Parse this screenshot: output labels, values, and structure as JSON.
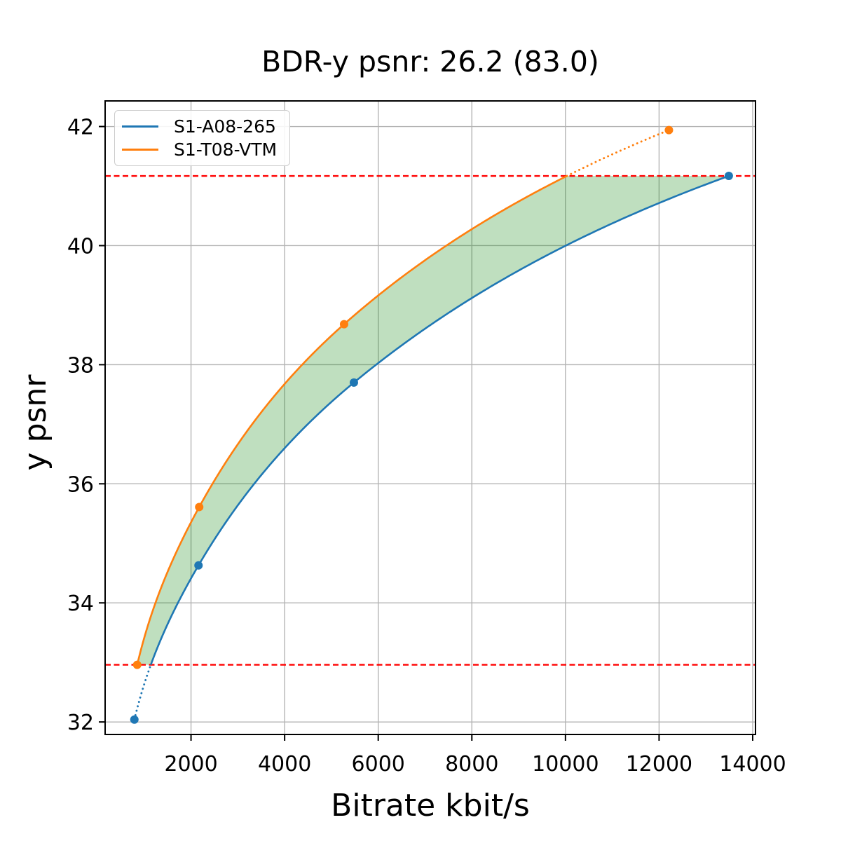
{
  "chart_data": {
    "type": "line",
    "title": "BDR-y psnr: 26.2 (83.0)",
    "xlabel": "Bitrate kbit/s",
    "ylabel": "y psnr",
    "xlim": [
      165,
      14060
    ],
    "ylim": [
      31.79,
      42.43
    ],
    "x_ticks": [
      2000,
      4000,
      6000,
      8000,
      10000,
      12000,
      14000
    ],
    "y_ticks": [
      32,
      34,
      36,
      38,
      40,
      42
    ],
    "grid": true,
    "grid_color": "#b4b4b4",
    "legend_position": "upper left",
    "interpolation": "pchip-log10",
    "series": [
      {
        "name": "S1-A08-265",
        "color": "#1f77b4",
        "x": [
          790,
          2160,
          5480,
          13490
        ],
        "y": [
          32.04,
          34.63,
          37.7,
          41.17
        ]
      },
      {
        "name": "S1-T08-VTM",
        "color": "#ff7f0e",
        "x": [
          850,
          2175,
          5270,
          12210
        ],
        "y": [
          32.96,
          35.61,
          38.68,
          41.94
        ]
      }
    ],
    "hlines": {
      "values": [
        32.96,
        41.17
      ],
      "color": "#ff0000",
      "style": "dashed",
      "note": "BD-rate overlap PSNR range markers"
    },
    "fill_between": {
      "lower_series": "S1-A08-265",
      "upper_series": "S1-T08-VTM",
      "clip_y": [
        32.96,
        41.17
      ],
      "color": "#008000",
      "alpha": 0.25
    },
    "out_of_range_style": "dotted"
  }
}
